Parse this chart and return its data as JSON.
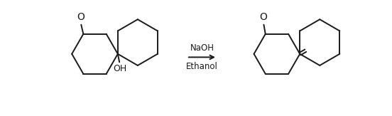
{
  "bg_color": "#ffffff",
  "line_color": "#1a1a1a",
  "line_width": 1.4,
  "arrow_text_top": "NaOH",
  "arrow_text_bottom": "Ethanol",
  "text_color": "#1a1a1a",
  "font_size": 8.5
}
